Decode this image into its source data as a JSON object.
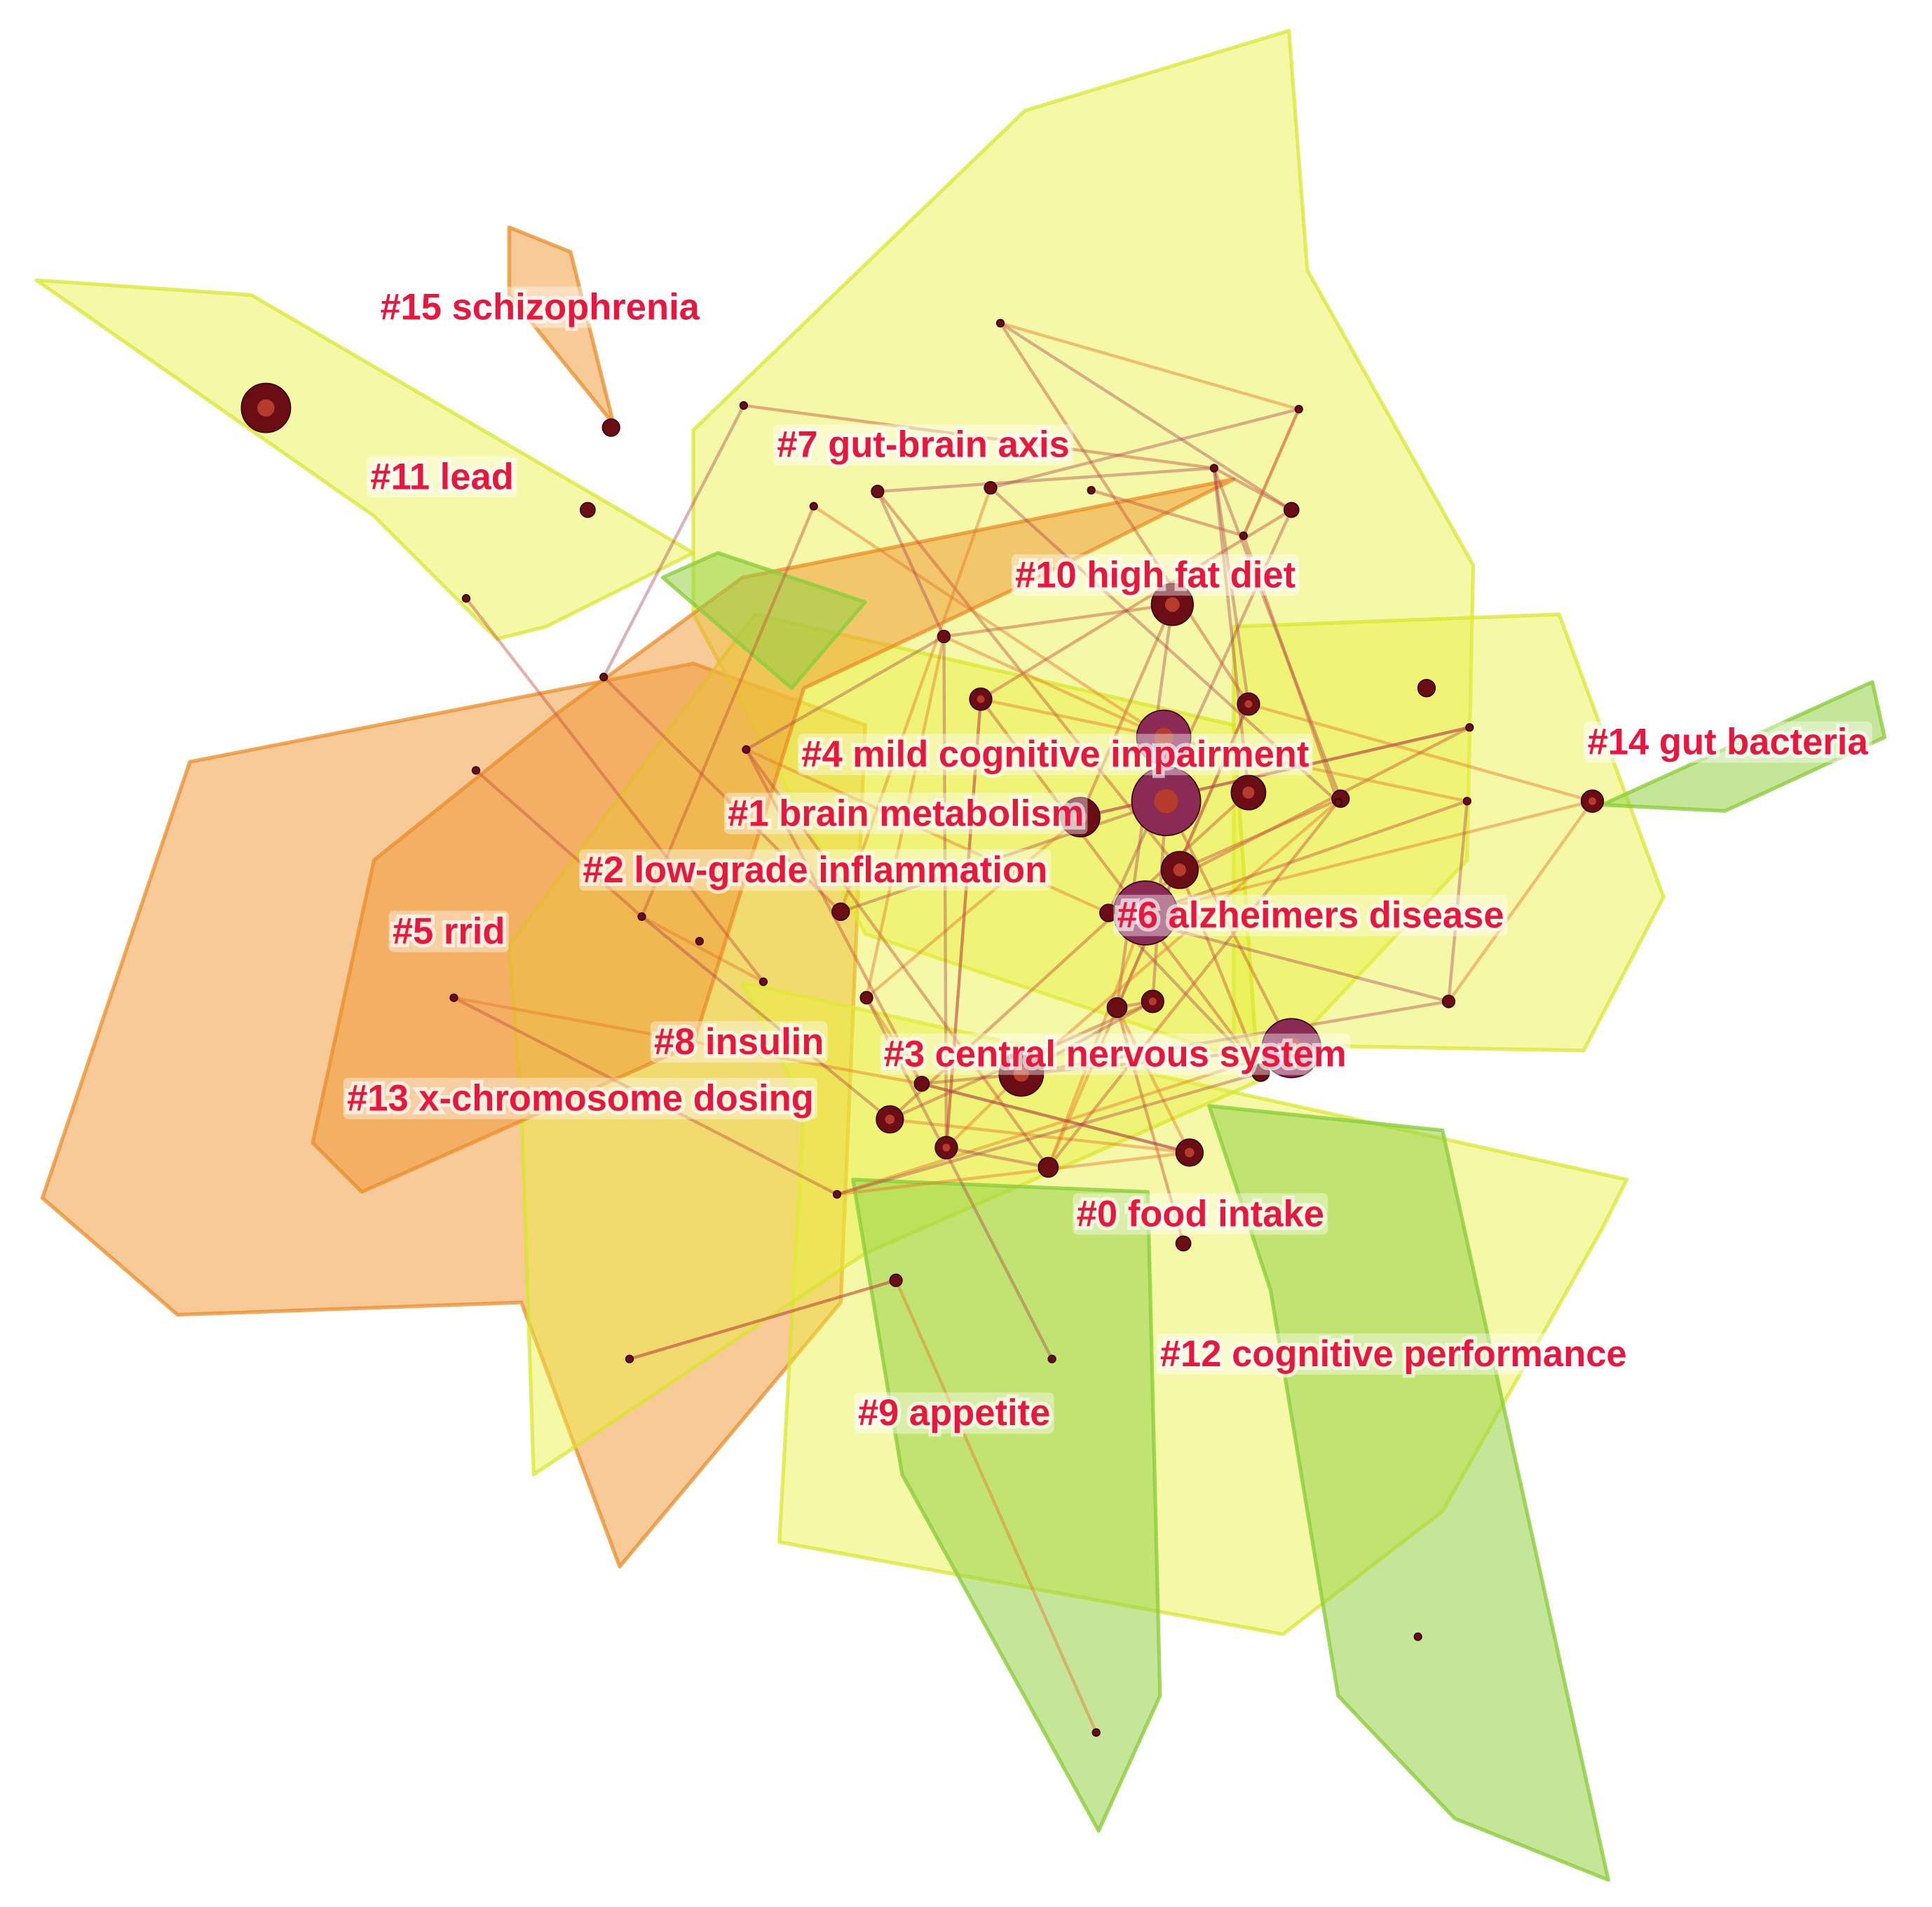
{
  "clusters": [
    {
      "label": "#15 schizophrenia"
    },
    {
      "label": "#7 gut-brain axis"
    },
    {
      "label": "#11 lead"
    },
    {
      "label": "#10 high fat diet"
    },
    {
      "label": "#14 gut bacteria"
    },
    {
      "label": "#4 mild cognitive impairment"
    },
    {
      "label": "#1 brain metabolism"
    },
    {
      "label": "#2 low-grade inflammation"
    },
    {
      "label": "#6 alzheimers disease"
    },
    {
      "label": "#5 rrid"
    },
    {
      "label": "#8 insulin"
    },
    {
      "label": "#3 central nervous system"
    },
    {
      "label": "#13 x-chromosome dosing"
    },
    {
      "label": "#0 food intake"
    },
    {
      "label": "#12 cognitive performance"
    },
    {
      "label": "#9 appetite"
    }
  ]
}
